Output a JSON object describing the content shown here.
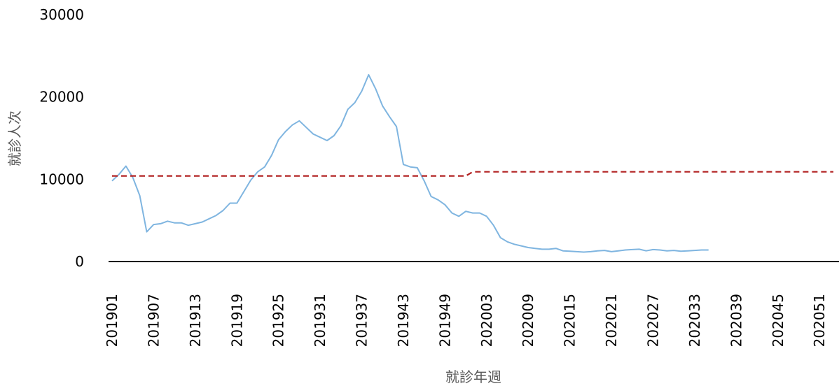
{
  "chart_data": {
    "type": "line",
    "title": "",
    "xlabel": "就診年週",
    "ylabel": "就診人次",
    "ylim": [
      0,
      30000
    ],
    "yticks": [
      "0",
      "10000",
      "20000",
      "30000"
    ],
    "xticks": [
      "201901",
      "201907",
      "201913",
      "201919",
      "201925",
      "201931",
      "201937",
      "201943",
      "201949",
      "202003",
      "202009",
      "202015",
      "202021",
      "202027",
      "202033",
      "202039",
      "202045",
      "202051"
    ],
    "x_count": 105,
    "grid": false,
    "legend": "none",
    "colors": {
      "visits": "#7fb5e0",
      "threshold": "#b22222",
      "axis": "#000000"
    },
    "series": [
      {
        "style": "solid",
        "values": [
          9800,
          10600,
          11600,
          10200,
          8000,
          3600,
          4500,
          4600,
          4900,
          4700,
          4700,
          4400,
          4600,
          4800,
          5200,
          5600,
          6200,
          7100,
          7100,
          8500,
          9900,
          10900,
          11500,
          12900,
          14800,
          15800,
          16600,
          17100,
          16300,
          15500,
          15100,
          14700,
          15300,
          16500,
          18500,
          19300,
          20700,
          22700,
          21000,
          18900,
          17600,
          16400,
          11800,
          11500,
          11400,
          9800,
          7900,
          7500,
          6900,
          5900,
          5500,
          6100,
          5900,
          5900,
          5500,
          4400,
          2900,
          2400,
          2100,
          1900,
          1700,
          1600,
          1500,
          1500,
          1600,
          1300,
          1250,
          1200,
          1150,
          1200,
          1300,
          1350,
          1200,
          1300,
          1400,
          1450,
          1500,
          1300,
          1450,
          1400,
          1300,
          1350,
          1250,
          1300,
          1350,
          1400,
          1400
        ]
      },
      {
        "style": "dashed",
        "values": [
          10400,
          10400,
          10400,
          10400,
          10400,
          10400,
          10400,
          10400,
          10400,
          10400,
          10400,
          10400,
          10400,
          10400,
          10400,
          10400,
          10400,
          10400,
          10400,
          10400,
          10400,
          10400,
          10400,
          10400,
          10400,
          10400,
          10400,
          10400,
          10400,
          10400,
          10400,
          10400,
          10400,
          10400,
          10400,
          10400,
          10400,
          10400,
          10400,
          10400,
          10400,
          10400,
          10400,
          10400,
          10400,
          10400,
          10400,
          10400,
          10400,
          10400,
          10400,
          10400,
          10900,
          10900,
          10900,
          10900,
          10900,
          10900,
          10900,
          10900,
          10900,
          10900,
          10900,
          10900,
          10900,
          10900,
          10900,
          10900,
          10900,
          10900,
          10900,
          10900,
          10900,
          10900,
          10900,
          10900,
          10900,
          10900,
          10900,
          10900,
          10900,
          10900,
          10900,
          10900,
          10900,
          10900,
          10900,
          10900,
          10900,
          10900,
          10900,
          10900,
          10900,
          10900,
          10900,
          10900,
          10900,
          10900,
          10900,
          10900,
          10900,
          10900,
          10900,
          10900,
          10900
        ]
      }
    ]
  }
}
